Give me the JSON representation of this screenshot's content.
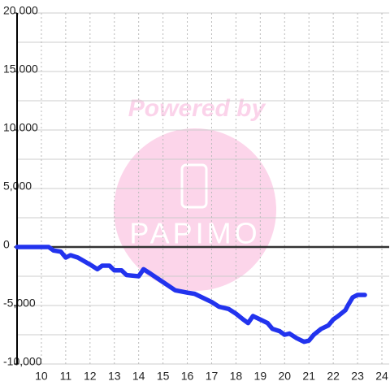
{
  "chart_data": {
    "type": "line",
    "watermark": {
      "title": "Powered by",
      "brand": "PAPIMO"
    },
    "x": [
      9.0,
      10.3,
      10.5,
      10.8,
      11.0,
      11.2,
      11.5,
      12.0,
      12.3,
      12.5,
      12.8,
      13.0,
      13.3,
      13.5,
      14.0,
      14.2,
      14.5,
      15.0,
      15.5,
      16.0,
      16.3,
      16.7,
      17.0,
      17.3,
      17.7,
      18.0,
      18.3,
      18.5,
      18.7,
      19.0,
      19.3,
      19.5,
      19.8,
      20.0,
      20.2,
      20.5,
      20.8,
      21.0,
      21.2,
      21.5,
      21.8,
      22.0,
      22.2,
      22.5,
      22.6,
      22.8,
      23.0,
      23.3
    ],
    "series": [
      {
        "color": "#2233ee",
        "values": [
          0,
          0,
          -300,
          -400,
          -900,
          -700,
          -900,
          -1500,
          -1900,
          -1600,
          -1600,
          -2000,
          -2000,
          -2400,
          -2500,
          -1900,
          -2300,
          -3000,
          -3700,
          -3900,
          -4000,
          -4400,
          -4700,
          -5100,
          -5300,
          -5700,
          -6200,
          -6500,
          -5900,
          -6200,
          -6500,
          -7000,
          -7200,
          -7500,
          -7400,
          -7800,
          -8100,
          -8000,
          -7500,
          -7000,
          -6700,
          -6200,
          -5900,
          -5400,
          -5000,
          -4300,
          -4100,
          -4100
        ]
      }
    ],
    "xlim": [
      9,
      24.3
    ],
    "xticks": [
      10,
      11,
      12,
      13,
      14,
      15,
      16,
      17,
      18,
      19,
      20,
      21,
      22,
      23,
      24
    ],
    "ylim": [
      -10000,
      20000
    ],
    "yticks": [
      {
        "value": -10000,
        "label": "-10,000"
      },
      {
        "value": -5000,
        "label": "-5,000"
      },
      0,
      {
        "value": 5000,
        "label": "5,000"
      },
      {
        "value": 10000,
        "label": "10,000"
      },
      {
        "value": 15000,
        "label": "15,000"
      },
      {
        "value": 20000,
        "label": "20,000"
      }
    ],
    "ygrid": [
      -10000,
      -7500,
      -5000,
      -2500,
      2500,
      5000,
      7500,
      10000,
      12500,
      15000,
      17500,
      20000
    ],
    "grid": true
  }
}
